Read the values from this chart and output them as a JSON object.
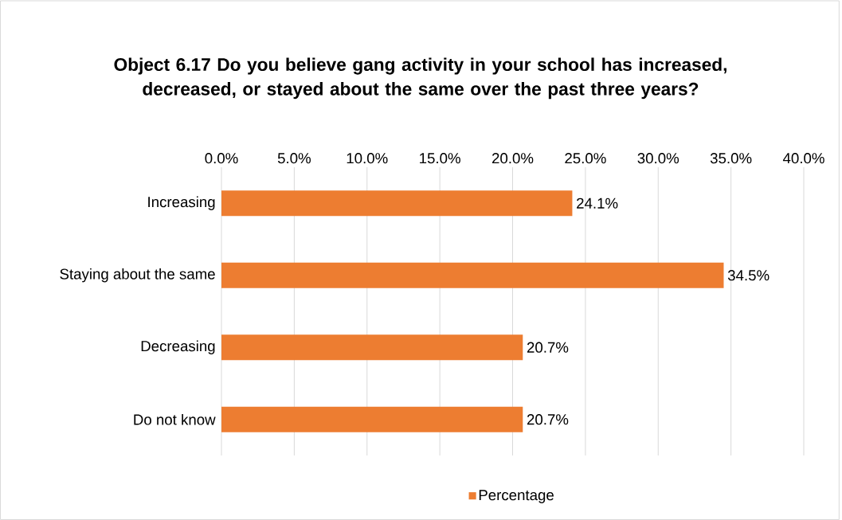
{
  "chart_data": {
    "type": "bar",
    "orientation": "horizontal",
    "title": "Object 6.17 Do you believe gang activity in your school has increased, decreased, or stayed about the same over the past three years?",
    "categories": [
      "Increasing",
      "Staying about the same",
      "Decreasing",
      "Do not know"
    ],
    "series": [
      {
        "name": "Percentage",
        "color": "#ed7d31",
        "values": [
          24.1,
          34.5,
          20.7,
          20.7
        ],
        "value_labels": [
          "24.1%",
          "34.5%",
          "20.7%",
          "20.7%"
        ]
      }
    ],
    "xlim": [
      0,
      40
    ],
    "xticks": [
      {
        "value": 0,
        "label": "0.0%"
      },
      {
        "value": 5,
        "label": "5.0%"
      },
      {
        "value": 10,
        "label": "10.0%"
      },
      {
        "value": 15,
        "label": "15.0%"
      },
      {
        "value": 20,
        "label": "20.0%"
      },
      {
        "value": 25,
        "label": "25.0%"
      },
      {
        "value": 30,
        "label": "30.0%"
      },
      {
        "value": 35,
        "label": "35.0%"
      },
      {
        "value": 40,
        "label": "40.0%"
      }
    ],
    "grid": "x",
    "legend": "bottom"
  }
}
